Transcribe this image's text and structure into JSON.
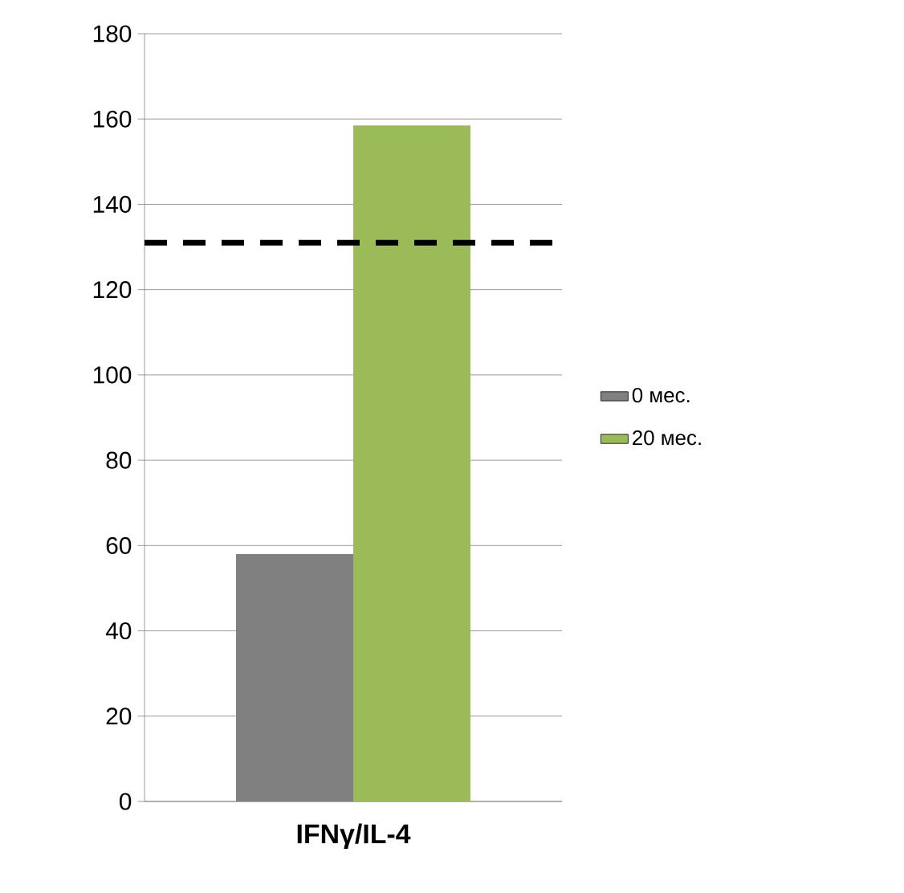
{
  "chart_data": {
    "type": "bar",
    "categories": [
      "IFNγ/IL-4"
    ],
    "series": [
      {
        "name": "0 мес.",
        "color": "#808080",
        "values": [
          58
        ]
      },
      {
        "name": "20 мес.",
        "color": "#9bbb59",
        "values": [
          158.5
        ]
      }
    ],
    "ylim": [
      0,
      180
    ],
    "yticks": [
      0,
      20,
      40,
      60,
      80,
      100,
      120,
      140,
      160,
      180
    ],
    "grid": "y",
    "legend": "right",
    "ref_lines": [
      {
        "axis": "y",
        "value": 131,
        "color": "#000000",
        "line_style": "dashed"
      }
    ]
  }
}
